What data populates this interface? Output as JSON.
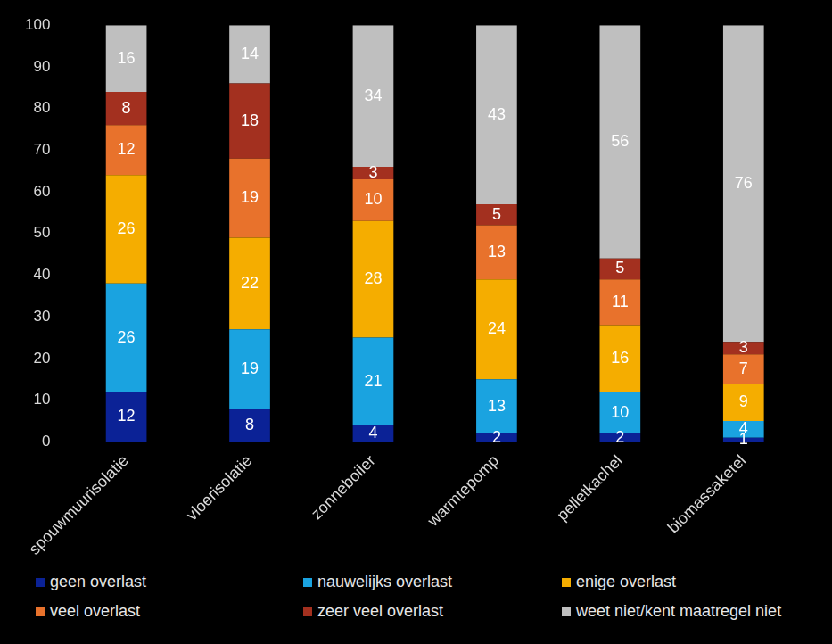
{
  "chart_data": {
    "type": "bar",
    "stacked": true,
    "data_labels": true,
    "grid": false,
    "legend": "bottom",
    "categories": [
      "spouwmuurisolatie",
      "vloerisolatie",
      "zonneboiler",
      "warmtepomp",
      "pelletkachel",
      "biomassaketel"
    ],
    "series": [
      {
        "name": "geen overlast",
        "color": "#0b2296",
        "values": [
          12,
          8,
          4,
          2,
          2,
          1
        ]
      },
      {
        "name": "nauwelijks overlast",
        "color": "#1aa3e0",
        "values": [
          26,
          19,
          21,
          13,
          10,
          4
        ]
      },
      {
        "name": "enige overlast",
        "color": "#f5ad00",
        "values": [
          26,
          22,
          28,
          24,
          16,
          9
        ]
      },
      {
        "name": "veel overlast",
        "color": "#e8722c",
        "values": [
          12,
          19,
          10,
          13,
          11,
          7
        ]
      },
      {
        "name": "zeer veel overlast",
        "color": "#a3301f",
        "values": [
          8,
          18,
          3,
          5,
          5,
          3
        ]
      },
      {
        "name": "weet niet/kent maatregel niet",
        "color": "#bfbfbf",
        "values": [
          16,
          14,
          34,
          43,
          56,
          76
        ]
      }
    ],
    "ylim": [
      0,
      100
    ],
    "yticks": [
      0,
      10,
      20,
      30,
      40,
      50,
      60,
      70,
      80,
      90,
      100
    ]
  }
}
